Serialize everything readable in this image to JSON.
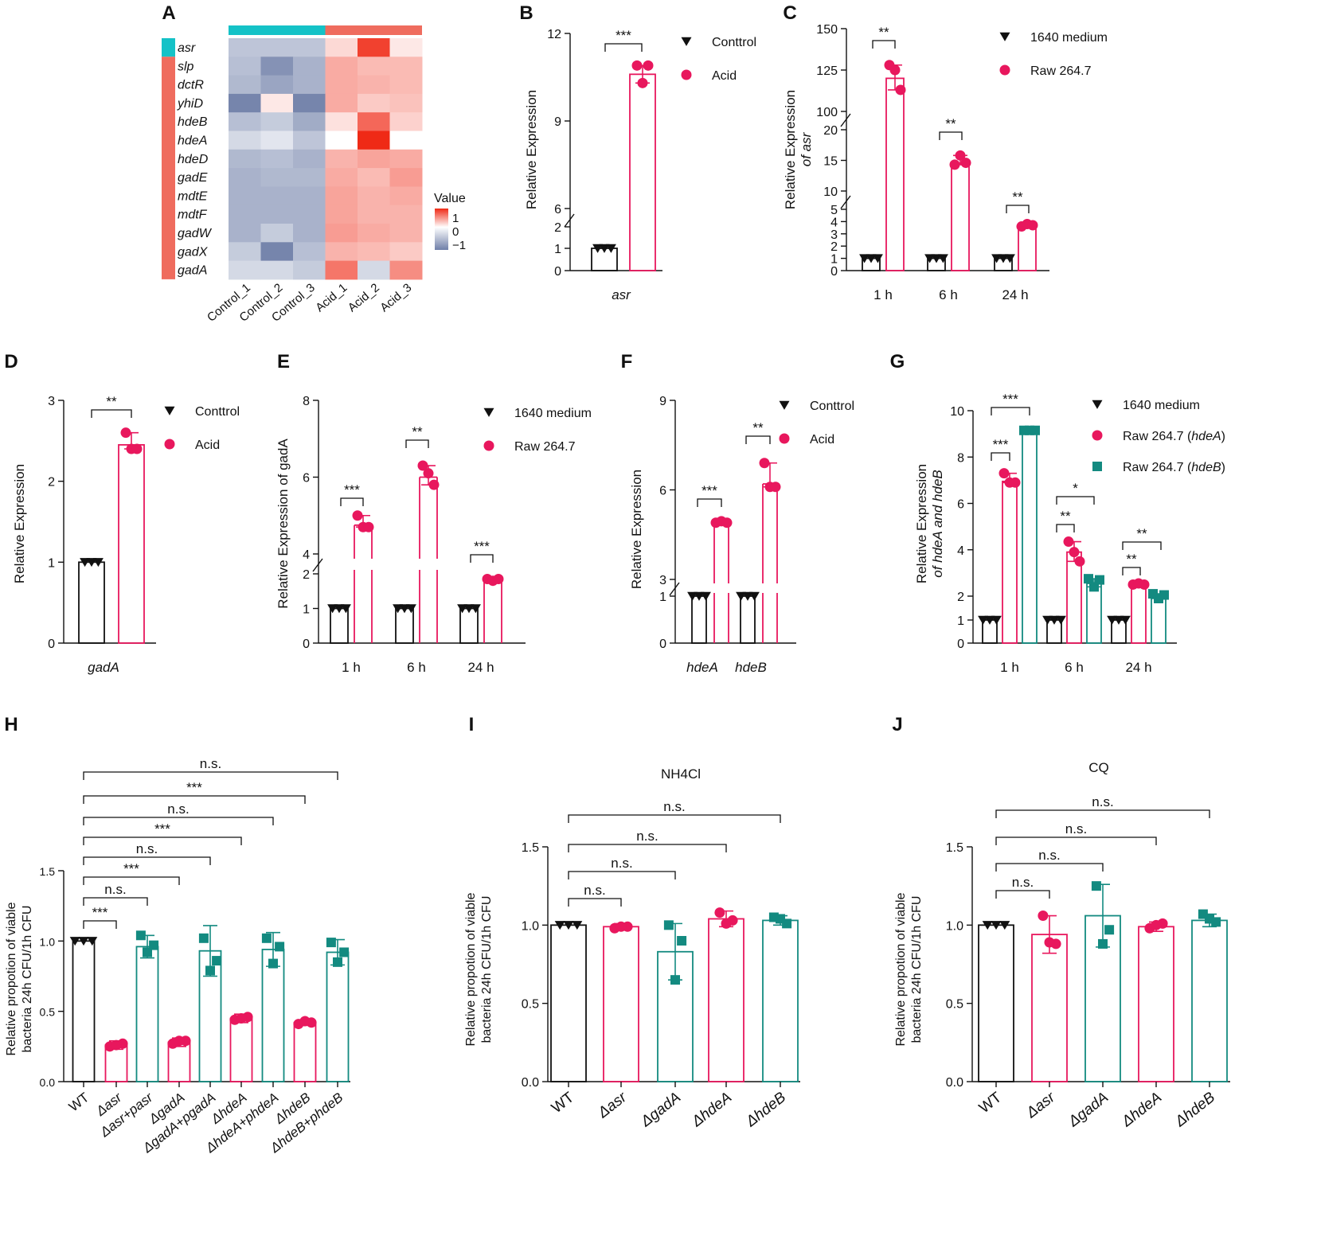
{
  "colors": {
    "black": "#111111",
    "pink": "#e8175d",
    "teal": "#138a80",
    "heat_low": "#6f7fa8",
    "heat_mid": "#ffffff",
    "heat_high": "#ef2a16",
    "cyan": "#14c2c7",
    "salmon": "#ef6c5e"
  },
  "chart_data": [
    {
      "id": "A",
      "panel_label": "A",
      "type": "heatmap",
      "rows": [
        "asr",
        "slp",
        "dctR",
        "yhiD",
        "hdeB",
        "hdeA",
        "hdeD",
        "gadE",
        "mdtE",
        "mdtF",
        "gadW",
        "gadX",
        "gadA"
      ],
      "columns": [
        "Control_1",
        "Control_2",
        "Control_3",
        "Acid_1",
        "Acid_2",
        "Acid_3"
      ],
      "values": [
        [
          -0.45,
          -0.45,
          -0.45,
          0.25,
          1.25,
          0.15
        ],
        [
          -0.5,
          -0.85,
          -0.6,
          0.55,
          0.45,
          0.45
        ],
        [
          -0.55,
          -0.7,
          -0.6,
          0.55,
          0.5,
          0.45
        ],
        [
          -0.95,
          0.15,
          -0.95,
          0.55,
          0.35,
          0.4
        ],
        [
          -0.5,
          -0.4,
          -0.65,
          0.2,
          1.0,
          0.3
        ],
        [
          -0.3,
          -0.2,
          -0.45,
          0.0,
          1.4,
          0.0
        ],
        [
          -0.55,
          -0.5,
          -0.6,
          0.5,
          0.6,
          0.55
        ],
        [
          -0.6,
          -0.55,
          -0.55,
          0.55,
          0.45,
          0.65
        ],
        [
          -0.6,
          -0.6,
          -0.6,
          0.6,
          0.5,
          0.55
        ],
        [
          -0.6,
          -0.6,
          -0.6,
          0.6,
          0.5,
          0.5
        ],
        [
          -0.6,
          -0.4,
          -0.6,
          0.65,
          0.55,
          0.5
        ],
        [
          -0.4,
          -0.95,
          -0.5,
          0.5,
          0.45,
          0.35
        ],
        [
          -0.3,
          -0.3,
          -0.4,
          0.9,
          -0.3,
          0.75
        ]
      ],
      "legend_title": "Value",
      "legend_ticks": [
        "1",
        "0",
        "−1"
      ]
    },
    {
      "id": "B",
      "panel_label": "B",
      "type": "bar",
      "xlabel": "asr",
      "ylabel": "Relative Expression",
      "ticks": [
        "0",
        "1",
        "2",
        "6",
        "9",
        "12"
      ],
      "legend": [
        "Conttrol",
        "Acid"
      ],
      "groups": [
        {
          "name": "asr",
          "bars": [
            {
              "series": "Conttrol",
              "value": 1.0,
              "points": [
                1,
                1,
                1
              ]
            },
            {
              "series": "Acid",
              "value": 10.6,
              "points": [
                10.9,
                10.3,
                10.9
              ]
            }
          ]
        }
      ],
      "annotations": [
        "***"
      ]
    },
    {
      "id": "C",
      "panel_label": "C",
      "type": "bar",
      "ylabel": "Relative Expression",
      "ylabel2": "of asr",
      "ticks": [
        "0",
        "1",
        "2",
        "3",
        "4",
        "5",
        "10",
        "15",
        "20",
        "100",
        "125",
        "150"
      ],
      "legend": [
        "1640 medium",
        "Raw 264.7"
      ],
      "groups": [
        {
          "name": "1 h",
          "bars": [
            {
              "series": "1640 medium",
              "value": 1.0,
              "points": [
                1,
                1,
                1
              ]
            },
            {
              "series": "Raw 264.7",
              "value": 120,
              "points": [
                128,
                125,
                113
              ]
            }
          ]
        },
        {
          "name": "6 h",
          "bars": [
            {
              "series": "1640 medium",
              "value": 1.0,
              "points": [
                1,
                1,
                1
              ]
            },
            {
              "series": "Raw 264.7",
              "value": 14.5,
              "points": [
                14.3,
                15.8,
                14.6
              ]
            }
          ]
        },
        {
          "name": "24 h",
          "bars": [
            {
              "series": "1640 medium",
              "value": 1.0,
              "points": [
                1,
                1,
                1
              ]
            },
            {
              "series": "Raw 264.7",
              "value": 3.7,
              "points": [
                3.6,
                3.8,
                3.7
              ]
            }
          ]
        }
      ],
      "annotations": [
        "**",
        "**",
        "**"
      ]
    },
    {
      "id": "D",
      "panel_label": "D",
      "type": "bar",
      "xlabel": "gadA",
      "ylabel": "Relative Expression",
      "ticks": [
        "0",
        "1",
        "2",
        "3"
      ],
      "legend": [
        "Conttrol",
        "Acid"
      ],
      "groups": [
        {
          "name": "gadA",
          "bars": [
            {
              "series": "Conttrol",
              "value": 1.0,
              "points": [
                1,
                1,
                1
              ]
            },
            {
              "series": "Acid",
              "value": 2.45,
              "points": [
                2.6,
                2.4,
                2.4
              ]
            }
          ]
        }
      ],
      "annotations": [
        "**"
      ]
    },
    {
      "id": "E",
      "panel_label": "E",
      "type": "bar",
      "ylabel": "Relative Expression of gadA",
      "ticks": [
        "0",
        "1",
        "2",
        "4",
        "6",
        "8"
      ],
      "legend": [
        "1640 medium",
        "Raw 264.7"
      ],
      "groups": [
        {
          "name": "1 h",
          "bars": [
            {
              "series": "1640 medium",
              "value": 1.0,
              "points": [
                1,
                1,
                1
              ]
            },
            {
              "series": "Raw 264.7",
              "value": 4.75,
              "points": [
                5.0,
                4.7,
                4.7
              ]
            }
          ]
        },
        {
          "name": "6 h",
          "bars": [
            {
              "series": "1640 medium",
              "value": 1.0,
              "points": [
                1,
                1,
                1
              ]
            },
            {
              "series": "Raw 264.7",
              "value": 6.0,
              "points": [
                6.3,
                6.1,
                5.8
              ]
            }
          ]
        },
        {
          "name": "24 h",
          "bars": [
            {
              "series": "1640 medium",
              "value": 1.0,
              "points": [
                1,
                1,
                1
              ]
            },
            {
              "series": "Raw 264.7",
              "value": 1.85,
              "points": [
                1.85,
                1.8,
                1.85
              ]
            }
          ]
        }
      ],
      "annotations": [
        "***",
        "**",
        "***"
      ]
    },
    {
      "id": "F",
      "panel_label": "F",
      "type": "bar",
      "ylabel": "Relative Expression",
      "ticks": [
        "0",
        "1",
        "3",
        "6",
        "9"
      ],
      "legend": [
        "Conttrol",
        "Acid"
      ],
      "groups": [
        {
          "name": "hdeA",
          "bars": [
            {
              "series": "Conttrol",
              "value": 1.0,
              "points": [
                1,
                1,
                1
              ]
            },
            {
              "series": "Acid",
              "value": 4.9,
              "points": [
                4.9,
                4.95,
                4.9
              ]
            }
          ]
        },
        {
          "name": "hdeB",
          "bars": [
            {
              "series": "Conttrol",
              "value": 1.0,
              "points": [
                1,
                1,
                1
              ]
            },
            {
              "series": "Acid",
              "value": 6.2,
              "points": [
                6.9,
                6.1,
                6.1
              ]
            }
          ]
        }
      ],
      "annotations": [
        "***",
        "**"
      ]
    },
    {
      "id": "G",
      "panel_label": "G",
      "type": "bar",
      "ylabel": "Relative Expression",
      "ylabel2": "of hdeA and hdeB",
      "ticks": [
        "0",
        "1",
        "2",
        "4",
        "6",
        "8",
        "10"
      ],
      "legend": [
        "1640 medium",
        "Raw 264.7 (hdeA)",
        "Raw 264.7 (hdeB)"
      ],
      "groups": [
        {
          "name": "1 h",
          "bars": [
            {
              "series": "1640 medium",
              "value": 1.0,
              "points": [
                1,
                1,
                1
              ]
            },
            {
              "series": "Raw 264.7 (hdeA)",
              "value": 6.95,
              "points": [
                7.3,
                6.9,
                6.9
              ]
            },
            {
              "series": "Raw 264.7 (hdeB)",
              "value": 9.15,
              "points": [
                9.15,
                9.15,
                9.15
              ]
            }
          ]
        },
        {
          "name": "6 h",
          "bars": [
            {
              "series": "1640 medium",
              "value": 1.0,
              "points": [
                1,
                1,
                1
              ]
            },
            {
              "series": "Raw 264.7 (hdeA)",
              "value": 3.9,
              "points": [
                4.35,
                3.9,
                3.5
              ]
            },
            {
              "series": "Raw 264.7 (hdeB)",
              "value": 2.55,
              "points": [
                2.75,
                2.4,
                2.7
              ]
            }
          ]
        },
        {
          "name": "24 h",
          "bars": [
            {
              "series": "1640 medium",
              "value": 1.0,
              "points": [
                1,
                1,
                1
              ]
            },
            {
              "series": "Raw 264.7 (hdeA)",
              "value": 2.5,
              "points": [
                2.5,
                2.55,
                2.5
              ]
            },
            {
              "series": "Raw 264.7 (hdeB)",
              "value": 2.0,
              "points": [
                2.1,
                1.9,
                2.05
              ]
            }
          ]
        }
      ],
      "annotations": [
        "***",
        "***",
        "**",
        "*",
        "**",
        "**"
      ]
    },
    {
      "id": "H",
      "panel_label": "H",
      "type": "bar",
      "ylabel": "Relative propotion of viable",
      "ylabel2": "bacteria 24h CFU/1h CFU",
      "ticks": [
        "0.0",
        "0.5",
        "1.0",
        "1.5"
      ],
      "categories": [
        "WT",
        "Δasr",
        "Δasr+pasr",
        "ΔgadA",
        "ΔgadA+pgadA",
        "ΔhdeA",
        "ΔhdeA+phdeA",
        "ΔhdeB",
        "ΔhdeB+phdeB"
      ],
      "values": [
        1.0,
        0.26,
        0.96,
        0.28,
        0.93,
        0.45,
        0.94,
        0.42,
        0.92
      ],
      "errors": [
        0.02,
        0.03,
        0.08,
        0.03,
        0.18,
        0.03,
        0.12,
        0.02,
        0.09
      ],
      "points": [
        [
          1,
          1,
          1
        ],
        [
          0.25,
          0.27,
          0.26
        ],
        [
          1.04,
          0.97,
          0.92
        ],
        [
          0.27,
          0.29,
          0.29
        ],
        [
          1.02,
          0.86,
          0.79
        ],
        [
          0.44,
          0.46,
          0.45
        ],
        [
          1.02,
          0.96,
          0.84
        ],
        [
          0.41,
          0.42,
          0.43
        ],
        [
          0.99,
          0.92,
          0.85
        ]
      ],
      "annotations": [
        "***",
        "n.s.",
        "***",
        "n.s.",
        "***",
        "n.s.",
        "***",
        "n.s."
      ]
    },
    {
      "id": "I",
      "panel_label": "I",
      "type": "bar",
      "title": "NH4Cl",
      "ylabel": "Relative propotion of viable",
      "ylabel2": "bacteria 24h CFU/1h CFU",
      "ticks": [
        "0.0",
        "0.5",
        "1.0",
        "1.5"
      ],
      "categories": [
        "WT",
        "Δasr",
        "ΔgadA",
        "ΔhdeA",
        "ΔhdeB"
      ],
      "values": [
        1.0,
        0.99,
        0.83,
        1.04,
        1.03
      ],
      "errors": [
        0.02,
        0.02,
        0.18,
        0.05,
        0.03
      ],
      "points": [
        [
          1,
          1,
          1
        ],
        [
          0.98,
          0.99,
          0.99
        ],
        [
          1.0,
          0.9,
          0.65
        ],
        [
          1.08,
          1.03,
          1.01
        ],
        [
          1.05,
          1.01,
          1.04
        ]
      ],
      "annotations": [
        "n.s.",
        "n.s.",
        "n.s.",
        "n.s."
      ]
    },
    {
      "id": "J",
      "panel_label": "J",
      "type": "bar",
      "title": "CQ",
      "ylabel": "Relative propotion of viable",
      "ylabel2": "bacteria 24h CFU/1h CFU",
      "ticks": [
        "0.0",
        "0.5",
        "1.0",
        "1.5"
      ],
      "categories": [
        "WT",
        "Δasr",
        "ΔgadA",
        "ΔhdeA",
        "ΔhdeB"
      ],
      "values": [
        1.0,
        0.94,
        1.06,
        0.99,
        1.03
      ],
      "errors": [
        0.02,
        0.12,
        0.2,
        0.03,
        0.04
      ],
      "points": [
        [
          1,
          1,
          1
        ],
        [
          1.06,
          0.88,
          0.89
        ],
        [
          1.25,
          0.97,
          0.88
        ],
        [
          0.98,
          1.01,
          1.0
        ],
        [
          1.07,
          1.02,
          1.04
        ]
      ],
      "annotations": [
        "n.s.",
        "n.s.",
        "n.s.",
        "n.s."
      ]
    }
  ]
}
